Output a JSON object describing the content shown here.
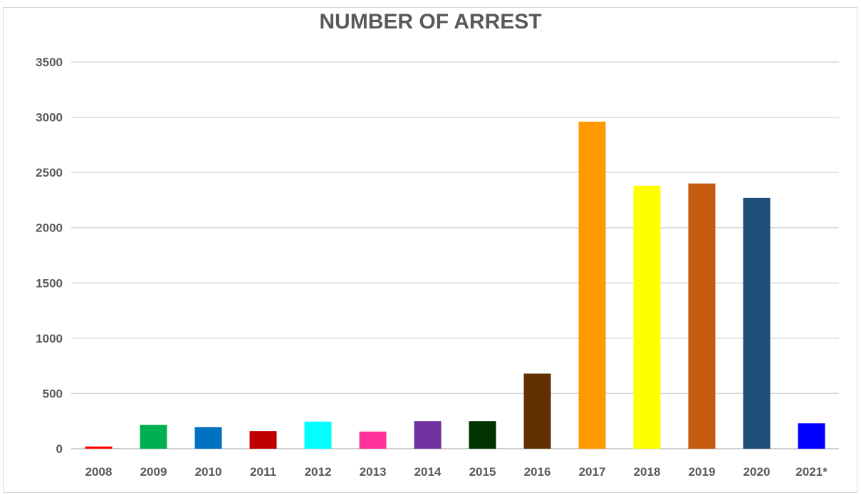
{
  "chart_data": {
    "type": "bar",
    "title": "NUMBER OF ARREST",
    "xlabel": "",
    "ylabel": "",
    "ylim": [
      0,
      3500
    ],
    "yticks": [
      "0",
      "500",
      "1000",
      "1500",
      "2000",
      "2500",
      "3000",
      "3500"
    ],
    "grid": true,
    "categories": [
      "2008",
      "2009",
      "2010",
      "2011",
      "2012",
      "2013",
      "2014",
      "2015",
      "2016",
      "2017",
      "2018",
      "2019",
      "2020",
      "2021*"
    ],
    "values": [
      20,
      215,
      195,
      160,
      245,
      155,
      250,
      250,
      680,
      2960,
      2380,
      2400,
      2270,
      230
    ],
    "colors": [
      "#FF0000",
      "#00B050",
      "#0070C0",
      "#C00000",
      "#00FFFF",
      "#FF3399",
      "#7030A0",
      "#003300",
      "#603000",
      "#FF9900",
      "#FFFF00",
      "#C55A11",
      "#1F4E79",
      "#0000FF"
    ]
  }
}
